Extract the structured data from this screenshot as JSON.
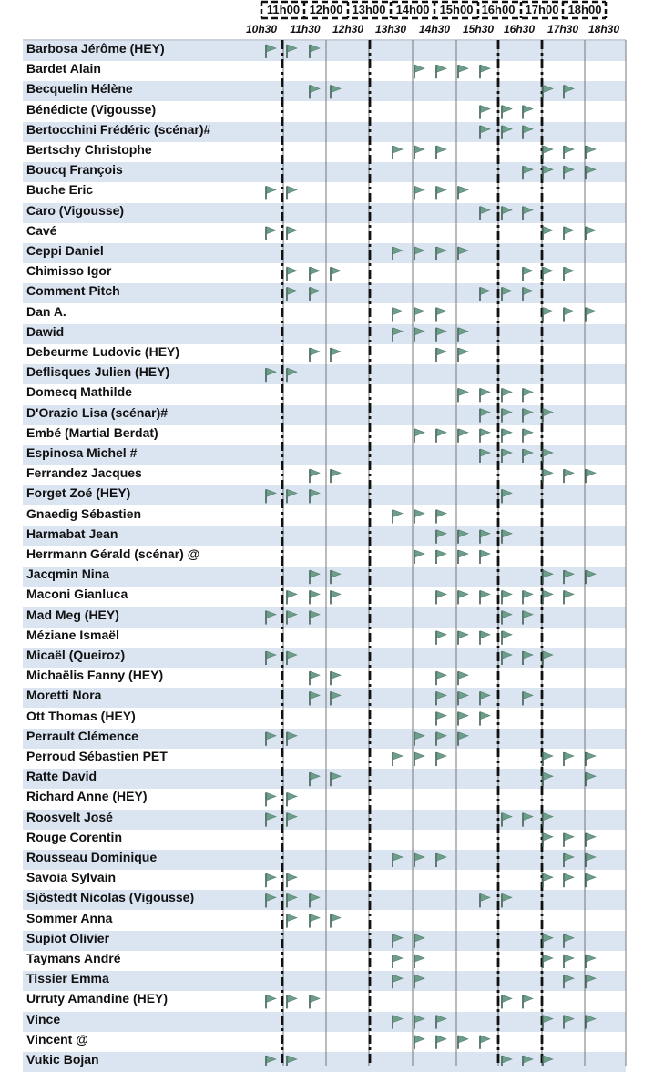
{
  "hours": [
    "11h00",
    "12h00",
    "13h00",
    "14h00",
    "15h00",
    "16h00",
    "17h00",
    "18h00"
  ],
  "half_hours": [
    "10h30",
    "11h30",
    "12h30",
    "13h30",
    "14h30",
    "15h30",
    "16h30",
    "17h30",
    "18h30"
  ],
  "flag_color": "#6e9e8a",
  "row_alt_color": "#dbe4f1",
  "rows": [
    {
      "name": "Barbosa Jérôme (HEY)",
      "slots": [
        0,
        1,
        2
      ]
    },
    {
      "name": "Bardet Alain",
      "slots": [
        6,
        7,
        8,
        9
      ]
    },
    {
      "name": "Becquelin Hélène",
      "slots": [
        2,
        3,
        12,
        13
      ]
    },
    {
      "name": "Bénédicte (Vigousse)",
      "slots": [
        9,
        10,
        11
      ]
    },
    {
      "name": "Bertocchini Frédéric (scénar)#",
      "slots": [
        9,
        10,
        11
      ]
    },
    {
      "name": "Bertschy Christophe",
      "slots": [
        5,
        6,
        7,
        12,
        13,
        14
      ]
    },
    {
      "name": "Boucq François",
      "slots": [
        11,
        12,
        13,
        14
      ]
    },
    {
      "name": "Buche Eric",
      "slots": [
        0,
        1,
        6,
        7,
        8
      ]
    },
    {
      "name": "Caro (Vigousse)",
      "slots": [
        9,
        10,
        11
      ]
    },
    {
      "name": "Cavé",
      "slots": [
        0,
        1,
        12,
        13,
        14
      ]
    },
    {
      "name": "Ceppi Daniel",
      "slots": [
        5,
        6,
        7,
        8
      ]
    },
    {
      "name": "Chimisso Igor",
      "slots": [
        1,
        2,
        3,
        11,
        12,
        13
      ]
    },
    {
      "name": "Comment Pitch",
      "slots": [
        1,
        2,
        9,
        10,
        11
      ]
    },
    {
      "name": "Dan A.",
      "slots": [
        5,
        6,
        7,
        12,
        13,
        14
      ]
    },
    {
      "name": "Dawid",
      "slots": [
        5,
        6,
        7,
        8
      ]
    },
    {
      "name": "Debeurme Ludovic (HEY)",
      "slots": [
        2,
        3,
        7,
        8
      ]
    },
    {
      "name": "Deflisques Julien (HEY)",
      "slots": [
        0,
        1
      ]
    },
    {
      "name": "Domecq Mathilde",
      "slots": [
        8,
        9,
        10,
        11
      ]
    },
    {
      "name": "D'Orazio Lisa (scénar)#",
      "slots": [
        9,
        10,
        11,
        12
      ]
    },
    {
      "name": "Embé (Martial Berdat)",
      "slots": [
        6,
        7,
        8,
        9,
        10,
        11
      ]
    },
    {
      "name": "Espinosa Michel #",
      "slots": [
        9,
        10,
        11,
        12
      ]
    },
    {
      "name": "Ferrandez Jacques",
      "slots": [
        2,
        3,
        12,
        13,
        14
      ]
    },
    {
      "name": "Forget Zoé (HEY)",
      "slots": [
        0,
        1,
        2,
        10
      ]
    },
    {
      "name": "Gnaedig Sébastien",
      "slots": [
        5,
        6,
        7
      ]
    },
    {
      "name": "Harmabat Jean",
      "slots": [
        7,
        8,
        9,
        10
      ]
    },
    {
      "name": "Herrmann Gérald (scénar) @",
      "slots": [
        6,
        7,
        8,
        9
      ]
    },
    {
      "name": "Jacqmin Nina",
      "slots": [
        2,
        3,
        12,
        13,
        14
      ]
    },
    {
      "name": "Maconi Gianluca",
      "slots": [
        1,
        2,
        3,
        7,
        8,
        9,
        10,
        11,
        12,
        13
      ]
    },
    {
      "name": "Mad Meg (HEY)",
      "slots": [
        0,
        1,
        2,
        10,
        11
      ]
    },
    {
      "name": "Méziane Ismaël",
      "slots": [
        7,
        8,
        9,
        10
      ]
    },
    {
      "name": "Micaël (Queiroz)",
      "slots": [
        0,
        1,
        10,
        11,
        12
      ]
    },
    {
      "name": "Michaëlis Fanny (HEY)",
      "slots": [
        2,
        3,
        7,
        8
      ]
    },
    {
      "name": "Moretti Nora",
      "slots": [
        2,
        3,
        7,
        8,
        9,
        11
      ]
    },
    {
      "name": "Ott Thomas (HEY)",
      "slots": [
        7,
        8,
        9
      ]
    },
    {
      "name": "Perrault Clémence",
      "slots": [
        0,
        1,
        6,
        7,
        8
      ]
    },
    {
      "name": "Perroud Sébastien PET",
      "slots": [
        5,
        6,
        7,
        12,
        13,
        14
      ]
    },
    {
      "name": "Ratte David",
      "slots": [
        2,
        3,
        12,
        14
      ]
    },
    {
      "name": "Richard Anne (HEY)",
      "slots": [
        0,
        1
      ]
    },
    {
      "name": "Roosvelt José",
      "slots": [
        0,
        1,
        10,
        11,
        12
      ]
    },
    {
      "name": "Rouge Corentin",
      "slots": [
        12,
        13,
        14
      ]
    },
    {
      "name": "Rousseau Dominique",
      "slots": [
        5,
        6,
        7,
        13,
        14
      ]
    },
    {
      "name": "Savoia Sylvain",
      "slots": [
        0,
        1,
        12,
        13,
        14
      ]
    },
    {
      "name": "Sjöstedt Nicolas (Vigousse)",
      "slots": [
        0,
        1,
        2,
        9,
        10
      ]
    },
    {
      "name": "Sommer Anna",
      "slots": [
        1,
        2,
        3
      ]
    },
    {
      "name": "Supiot Olivier",
      "slots": [
        5,
        6,
        12,
        13
      ]
    },
    {
      "name": "Taymans André",
      "slots": [
        5,
        6,
        12,
        13,
        14
      ]
    },
    {
      "name": "Tissier Emma",
      "slots": [
        5,
        6,
        13,
        14
      ]
    },
    {
      "name": "Urruty Amandine (HEY)",
      "slots": [
        0,
        1,
        2,
        10,
        11
      ]
    },
    {
      "name": "Vince",
      "slots": [
        5,
        6,
        7,
        12,
        13,
        14
      ]
    },
    {
      "name": "Vincent @",
      "slots": [
        6,
        7,
        8,
        9
      ]
    },
    {
      "name": "Vukic Bojan",
      "slots": [
        0,
        1,
        10,
        11,
        12
      ]
    }
  ]
}
